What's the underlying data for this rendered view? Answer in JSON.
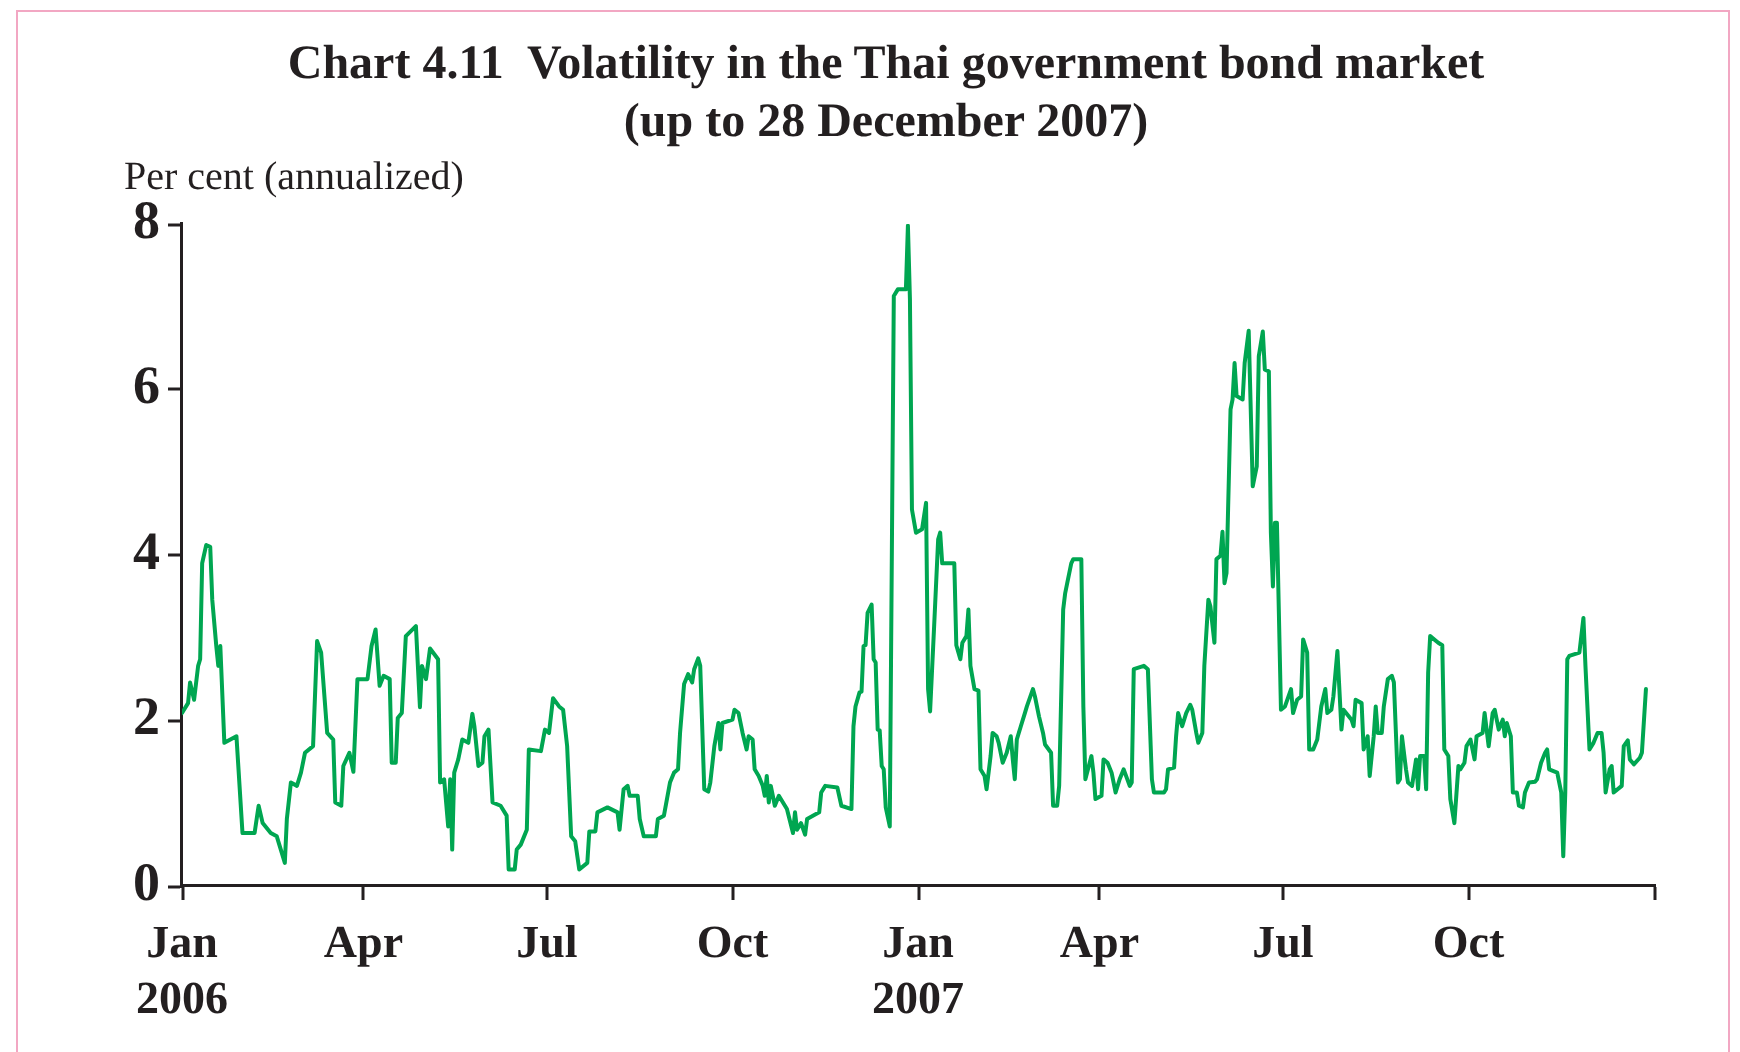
{
  "chart_data": {
    "type": "line",
    "title": "Chart 4.11  Volatility in the Thai government bond market",
    "subtitle": "(up to 28 December 2007)",
    "ylabel": "Per cent (annualized)",
    "color": "#00a651",
    "xlim": [
      "2006-01-01",
      "2008-01-01"
    ],
    "xticks": [
      {
        "value": "2006-01-01",
        "label": "Jan 2006"
      },
      {
        "value": "2006-04-01",
        "label": "Apr"
      },
      {
        "value": "2006-07-01",
        "label": "Jul"
      },
      {
        "value": "2006-10-01",
        "label": "Oct"
      },
      {
        "value": "2007-01-01",
        "label": "Jan 2007"
      },
      {
        "value": "2007-04-01",
        "label": "Apr"
      },
      {
        "value": "2007-07-01",
        "label": "Jul"
      },
      {
        "value": "2007-10-01",
        "label": "Oct"
      },
      {
        "value": "2008-01-01",
        "label": null
      }
    ],
    "ylim": [
      0,
      8
    ],
    "yticks": [
      0,
      2,
      4,
      6,
      8
    ],
    "x": [
      "2006-01-01",
      "2006-01-04",
      "2006-01-05",
      "2006-01-07",
      "2006-01-09",
      "2006-01-10",
      "2006-01-11",
      "2006-01-13",
      "2006-01-15",
      "2006-01-16",
      "2006-01-18",
      "2006-01-19",
      "2006-01-20",
      "2006-01-22",
      "2006-01-28",
      "2006-01-31",
      "2006-02-06",
      "2006-02-08",
      "2006-02-10",
      "2006-02-14",
      "2006-02-17",
      "2006-02-21",
      "2006-02-22",
      "2006-02-24",
      "2006-02-27",
      "2006-03-01",
      "2006-03-03",
      "2006-03-07",
      "2006-03-09",
      "2006-03-11",
      "2006-03-14",
      "2006-03-17",
      "2006-03-18",
      "2006-03-21",
      "2006-03-22",
      "2006-03-25",
      "2006-03-27",
      "2006-03-29",
      "2006-04-03",
      "2006-04-05",
      "2006-04-07",
      "2006-04-09",
      "2006-04-11",
      "2006-04-14",
      "2006-04-15",
      "2006-04-17",
      "2006-04-18",
      "2006-04-20",
      "2006-04-22",
      "2006-04-27",
      "2006-04-29",
      "2006-04-30",
      "2006-05-02",
      "2006-05-04",
      "2006-05-08",
      "2006-05-09",
      "2006-05-11",
      "2006-05-13",
      "2006-05-14",
      "2006-05-15",
      "2006-05-16",
      "2006-05-18",
      "2006-05-20",
      "2006-05-23",
      "2006-05-25",
      "2006-05-26",
      "2006-05-28",
      "2006-05-30",
      "2006-05-31",
      "2006-06-02",
      "2006-06-04",
      "2006-06-08",
      "2006-06-11",
      "2006-06-12",
      "2006-06-15",
      "2006-06-16",
      "2006-06-18",
      "2006-06-21",
      "2006-06-22",
      "2006-06-28",
      "2006-06-30",
      "2006-07-02",
      "2006-07-04",
      "2006-07-07",
      "2006-07-09",
      "2006-07-11",
      "2006-07-13",
      "2006-07-15",
      "2006-07-17",
      "2006-07-21",
      "2006-07-22",
      "2006-07-25",
      "2006-07-26",
      "2006-07-31",
      "2006-08-05",
      "2006-08-06",
      "2006-08-08",
      "2006-08-10",
      "2006-08-11",
      "2006-08-15",
      "2006-08-16",
      "2006-08-18",
      "2006-08-24",
      "2006-08-25",
      "2006-08-28",
      "2006-08-31",
      "2006-09-02",
      "2006-09-04",
      "2006-09-05",
      "2006-09-07",
      "2006-09-09",
      "2006-09-11",
      "2006-09-12",
      "2006-09-14",
      "2006-09-15",
      "2006-09-17",
      "2006-09-19",
      "2006-09-20",
      "2006-09-22",
      "2006-09-24",
      "2006-09-25",
      "2006-09-26",
      "2006-10-01",
      "2006-10-02",
      "2006-10-04",
      "2006-10-06",
      "2006-10-08",
      "2006-10-09",
      "2006-10-11",
      "2006-10-12",
      "2006-10-14",
      "2006-10-16",
      "2006-10-17",
      "2006-10-18",
      "2006-10-19",
      "2006-10-20",
      "2006-10-22",
      "2006-10-24",
      "2006-10-28",
      "2006-10-31",
      "2006-11-01",
      "2006-11-02",
      "2006-11-04",
      "2006-11-06",
      "2006-11-07",
      "2006-11-13",
      "2006-11-14",
      "2006-11-16",
      "2006-11-22",
      "2006-11-24",
      "2006-11-29",
      "2006-11-30",
      "2006-12-01",
      "2006-12-03",
      "2006-12-04",
      "2006-12-05",
      "2006-12-06",
      "2006-12-07",
      "2006-12-09",
      "2006-12-10",
      "2006-12-11",
      "2006-12-12",
      "2006-12-13",
      "2006-12-14",
      "2006-12-15",
      "2006-12-16",
      "2006-12-18",
      "2006-12-20",
      "2006-12-22",
      "2006-12-26",
      "2006-12-27",
      "2006-12-28",
      "2006-12-29",
      "2006-12-31",
      "2007-01-03",
      "2007-01-05",
      "2007-01-06",
      "2007-01-07",
      "2007-01-09",
      "2007-01-11",
      "2007-01-12",
      "2007-01-13",
      "2007-01-19",
      "2007-01-20",
      "2007-01-22",
      "2007-01-23",
      "2007-01-25",
      "2007-01-26",
      "2007-01-27",
      "2007-01-29",
      "2007-01-31",
      "2007-02-01",
      "2007-02-03",
      "2007-02-04",
      "2007-02-06",
      "2007-02-07",
      "2007-02-09",
      "2007-02-10",
      "2007-02-12",
      "2007-02-14",
      "2007-02-16",
      "2007-02-17",
      "2007-02-18",
      "2007-02-19",
      "2007-02-21",
      "2007-02-23",
      "2007-02-24",
      "2007-02-27",
      "2007-02-28",
      "2007-03-02",
      "2007-03-04",
      "2007-03-05",
      "2007-03-08",
      "2007-03-09",
      "2007-03-11",
      "2007-03-12",
      "2007-03-14",
      "2007-03-15",
      "2007-03-16",
      "2007-03-18",
      "2007-03-19",
      "2007-03-23",
      "2007-03-24",
      "2007-03-25",
      "2007-03-28",
      "2007-03-29",
      "2007-03-30",
      "2007-04-02",
      "2007-04-03",
      "2007-04-05",
      "2007-04-07",
      "2007-04-09",
      "2007-04-11",
      "2007-04-13",
      "2007-04-16",
      "2007-04-17",
      "2007-04-18",
      "2007-04-23",
      "2007-04-25",
      "2007-04-27",
      "2007-04-28",
      "2007-05-03",
      "2007-05-04",
      "2007-05-05",
      "2007-05-08",
      "2007-05-09",
      "2007-05-10",
      "2007-05-12",
      "2007-05-14",
      "2007-05-16",
      "2007-05-17",
      "2007-05-19",
      "2007-05-20",
      "2007-05-22",
      "2007-05-23",
      "2007-05-25",
      "2007-05-26",
      "2007-05-28",
      "2007-05-29",
      "2007-05-31",
      "2007-06-01",
      "2007-06-02",
      "2007-06-03",
      "2007-06-05",
      "2007-06-06",
      "2007-06-07",
      "2007-06-08",
      "2007-06-11",
      "2007-06-12",
      "2007-06-14",
      "2007-06-16",
      "2007-06-18",
      "2007-06-19",
      "2007-06-21",
      "2007-06-22",
      "2007-06-24",
      "2007-06-25",
      "2007-06-26",
      "2007-06-27",
      "2007-06-28",
      "2007-06-30",
      "2007-07-02",
      "2007-07-05",
      "2007-07-06",
      "2007-07-08",
      "2007-07-10",
      "2007-07-11",
      "2007-07-13",
      "2007-07-14",
      "2007-07-16",
      "2007-07-18",
      "2007-07-20",
      "2007-07-22",
      "2007-07-23",
      "2007-07-25",
      "2007-07-26",
      "2007-07-28",
      "2007-07-30",
      "2007-07-31",
      "2007-08-04",
      "2007-08-05",
      "2007-08-06",
      "2007-08-09",
      "2007-08-10",
      "2007-08-12",
      "2007-08-13",
      "2007-08-15",
      "2007-08-16",
      "2007-08-17",
      "2007-08-19",
      "2007-08-20",
      "2007-08-22",
      "2007-08-24",
      "2007-08-25",
      "2007-08-27",
      "2007-08-28",
      "2007-08-29",
      "2007-08-31",
      "2007-09-01",
      "2007-09-03",
      "2007-09-05",
      "2007-09-06",
      "2007-09-07",
      "2007-09-09",
      "2007-09-10",
      "2007-09-11",
      "2007-09-12",
      "2007-09-16",
      "2007-09-18",
      "2007-09-19",
      "2007-09-21",
      "2007-09-22",
      "2007-09-24",
      "2007-09-26",
      "2007-09-27",
      "2007-09-29",
      "2007-09-30",
      "2007-10-02",
      "2007-10-04",
      "2007-10-05",
      "2007-10-08",
      "2007-10-09",
      "2007-10-11",
      "2007-10-13",
      "2007-10-14",
      "2007-10-16",
      "2007-10-18",
      "2007-10-19",
      "2007-10-20",
      "2007-10-22",
      "2007-10-23",
      "2007-10-25",
      "2007-10-26",
      "2007-10-28",
      "2007-10-29",
      "2007-10-31",
      "2007-11-03",
      "2007-11-04",
      "2007-11-06",
      "2007-11-08",
      "2007-11-09",
      "2007-11-10",
      "2007-11-14",
      "2007-11-16",
      "2007-11-17",
      "2007-11-18",
      "2007-11-19",
      "2007-11-20",
      "2007-11-25",
      "2007-11-27",
      "2007-11-28",
      "2007-11-30",
      "2007-12-02",
      "2007-12-04",
      "2007-12-06",
      "2007-12-07",
      "2007-12-08",
      "2007-12-10",
      "2007-12-11",
      "2007-12-12",
      "2007-12-16",
      "2007-12-17",
      "2007-12-19",
      "2007-12-20",
      "2007-12-22",
      "2007-12-25",
      "2007-12-26",
      "2007-12-28"
    ],
    "values": [
      2.09,
      2.21,
      2.46,
      2.25,
      2.66,
      2.74,
      3.9,
      4.12,
      4.1,
      3.46,
      2.9,
      2.66,
      2.9,
      1.73,
      1.81,
      0.64,
      0.64,
      0.97,
      0.76,
      0.64,
      0.6,
      0.28,
      0.81,
      1.25,
      1.21,
      1.37,
      1.61,
      1.69,
      2.96,
      2.82,
      1.85,
      1.77,
      1.01,
      0.97,
      1.45,
      1.61,
      1.38,
      2.5,
      2.5,
      2.9,
      3.1,
      2.42,
      2.54,
      2.5,
      1.49,
      1.49,
      2.03,
      2.09,
      3.02,
      3.14,
      2.16,
      2.66,
      2.5,
      2.87,
      2.74,
      1.25,
      1.29,
      0.72,
      1.29,
      0.44,
      1.37,
      1.53,
      1.77,
      1.73,
      2.08,
      1.93,
      1.45,
      1.49,
      1.81,
      1.89,
      1.01,
      0.97,
      0.85,
      0.2,
      0.2,
      0.44,
      0.5,
      0.68,
      1.65,
      1.63,
      1.89,
      1.85,
      2.27,
      2.17,
      2.13,
      1.69,
      0.6,
      0.54,
      0.2,
      0.28,
      0.66,
      0.66,
      0.89,
      0.95,
      0.89,
      0.68,
      1.17,
      1.21,
      1.09,
      1.09,
      0.81,
      0.6,
      0.6,
      0.81,
      0.85,
      1.25,
      1.37,
      1.41,
      1.85,
      2.44,
      2.56,
      2.46,
      2.62,
      2.75,
      2.66,
      1.17,
      1.14,
      1.25,
      1.69,
      1.97,
      1.65,
      1.97,
      2.01,
      2.13,
      2.09,
      1.85,
      1.65,
      1.81,
      1.77,
      1.41,
      1.33,
      1.21,
      1.09,
      1.33,
      1.01,
      1.21,
      0.97,
      1.09,
      0.93,
      0.64,
      0.89,
      0.68,
      0.76,
      0.62,
      0.81,
      0.89,
      1.13,
      1.21,
      1.19,
      0.97,
      0.93,
      1.93,
      2.17,
      2.34,
      2.35,
      2.9,
      2.91,
      3.3,
      3.4,
      2.74,
      2.7,
      1.89,
      1.88,
      1.45,
      1.41,
      0.95,
      0.72,
      7.13,
      7.21,
      7.21,
      7.98,
      7.09,
      4.55,
      4.27,
      4.31,
      4.63,
      2.38,
      2.11,
      3.14,
      4.19,
      4.27,
      3.9,
      3.9,
      2.91,
      2.74,
      2.94,
      3.02,
      3.34,
      2.66,
      2.38,
      2.36,
      1.41,
      1.33,
      1.17,
      1.57,
      1.85,
      1.81,
      1.73,
      1.49,
      1.61,
      1.81,
      1.53,
      1.29,
      1.77,
      1.93,
      2.09,
      2.17,
      2.38,
      2.29,
      2.05,
      1.85,
      1.71,
      1.61,
      0.97,
      0.97,
      1.21,
      3.34,
      3.54,
      3.66,
      3.9,
      3.95,
      3.95,
      2.17,
      1.29,
      1.57,
      1.37,
      1.05,
      1.09,
      1.53,
      1.49,
      1.37,
      1.13,
      1.29,
      1.41,
      1.21,
      1.25,
      2.62,
      2.66,
      2.62,
      1.29,
      1.13,
      1.13,
      1.17,
      1.41,
      1.43,
      1.81,
      2.09,
      1.93,
      2.09,
      2.19,
      2.13,
      1.85,
      1.73,
      1.85,
      2.66,
      3.46,
      3.38,
      2.94,
      3.95,
      3.99,
      4.28,
      3.66,
      3.78,
      5.76,
      5.88,
      6.32,
      5.92,
      5.88,
      6.32,
      6.71,
      4.83,
      5.07,
      6.4,
      6.7,
      6.24,
      6.22,
      4.27,
      3.62,
      4.39,
      4.39,
      2.13,
      2.17,
      2.38,
      2.09,
      2.25,
      2.29,
      2.98,
      2.82,
      1.65,
      1.65,
      1.77,
      2.17,
      2.38,
      2.09,
      2.13,
      2.29,
      2.84,
      1.89,
      2.13,
      2.01,
      1.93,
      2.25,
      2.21,
      1.65,
      1.81,
      1.33,
      1.81,
      2.17,
      1.85,
      1.85,
      2.17,
      2.5,
      2.54,
      2.46,
      1.25,
      1.29,
      1.81,
      1.41,
      1.25,
      1.21,
      1.53,
      1.17,
      1.57,
      1.57,
      1.17,
      2.58,
      3.02,
      2.94,
      2.91,
      1.65,
      1.57,
      1.05,
      0.76,
      1.45,
      1.41,
      1.49,
      1.69,
      1.77,
      1.53,
      1.81,
      1.85,
      2.09,
      1.69,
      2.09,
      2.13,
      1.89,
      2.01,
      1.81,
      1.97,
      1.81,
      1.13,
      1.13,
      0.97,
      0.95,
      1.13,
      1.25,
      1.26,
      1.29,
      1.49,
      1.61,
      1.65,
      1.41,
      1.37,
      1.13,
      0.36,
      1.13,
      2.74,
      2.78,
      2.82,
      3.24,
      2.66,
      1.65,
      1.73,
      1.85,
      1.85,
      1.61,
      1.13,
      1.41,
      1.45,
      1.13,
      1.21,
      1.69,
      1.76,
      1.53,
      1.47,
      1.55,
      1.61,
      2.38
    ]
  }
}
